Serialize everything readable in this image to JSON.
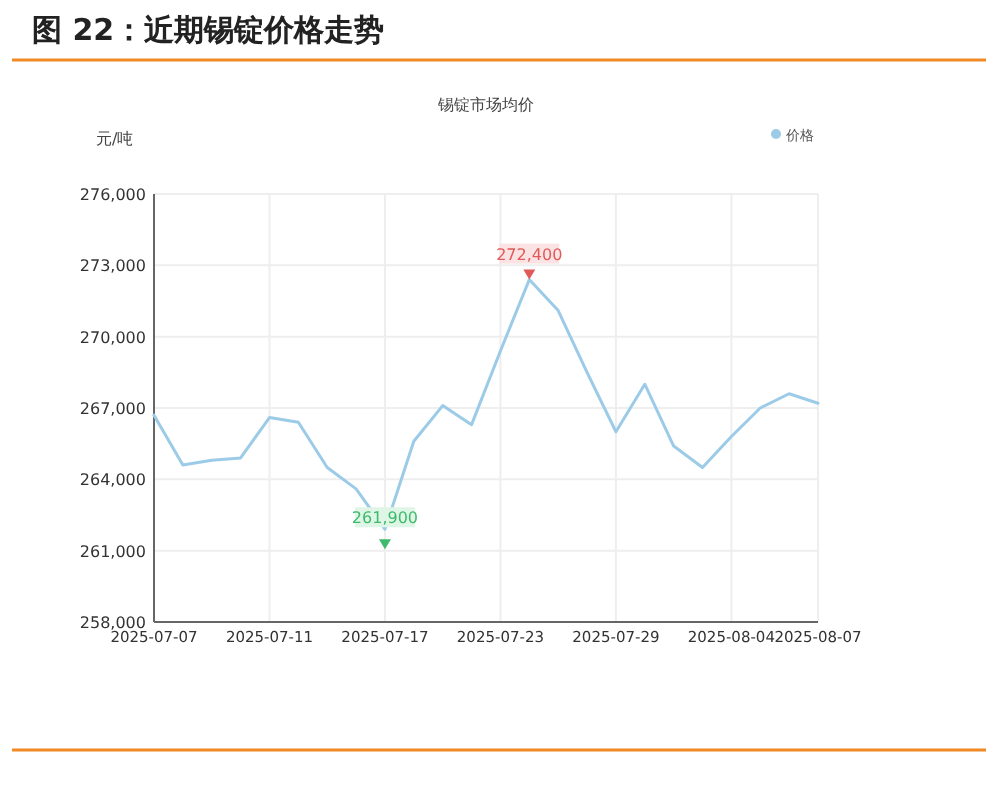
{
  "chart_data": {
    "type": "line",
    "title": "图 22：近期锡锭价格走势",
    "subtitle": "锡锭市场均价",
    "ylabel": "元/吨",
    "categories": [
      "2025-07-07",
      null,
      null,
      null,
      "2025-07-11",
      null,
      null,
      null,
      "2025-07-17",
      null,
      null,
      null,
      "2025-07-23",
      null,
      null,
      null,
      "2025-07-29",
      null,
      null,
      null,
      "2025-08-04",
      null,
      null,
      "2025-08-07"
    ],
    "series": [
      {
        "name": "价格",
        "color": "#9ccbe8",
        "values": [
          266700,
          264600,
          264800,
          264900,
          266600,
          266400,
          264500,
          263600,
          261900,
          265600,
          267100,
          266300,
          269400,
          272400,
          271100,
          268500,
          266000,
          268000,
          265400,
          264500,
          265800,
          267000,
          267600,
          267200
        ]
      }
    ],
    "ylim": [
      258000,
      276000
    ],
    "yticks": [
      {
        "value": 258000,
        "label": "258,000"
      },
      {
        "value": 261000,
        "label": "261,000"
      },
      {
        "value": 264000,
        "label": "264,000"
      },
      {
        "value": 267000,
        "label": "267,000"
      },
      {
        "value": 270000,
        "label": "270,000"
      },
      {
        "value": 273000,
        "label": "273,000"
      },
      {
        "value": 276000,
        "label": "276,000"
      }
    ],
    "annotations": [
      {
        "text": "261,900",
        "x": "2025-07-17",
        "y": 261900
      },
      {
        "text": "272,400",
        "y": 272400
      }
    ],
    "grid": true,
    "legend": "top right"
  }
}
